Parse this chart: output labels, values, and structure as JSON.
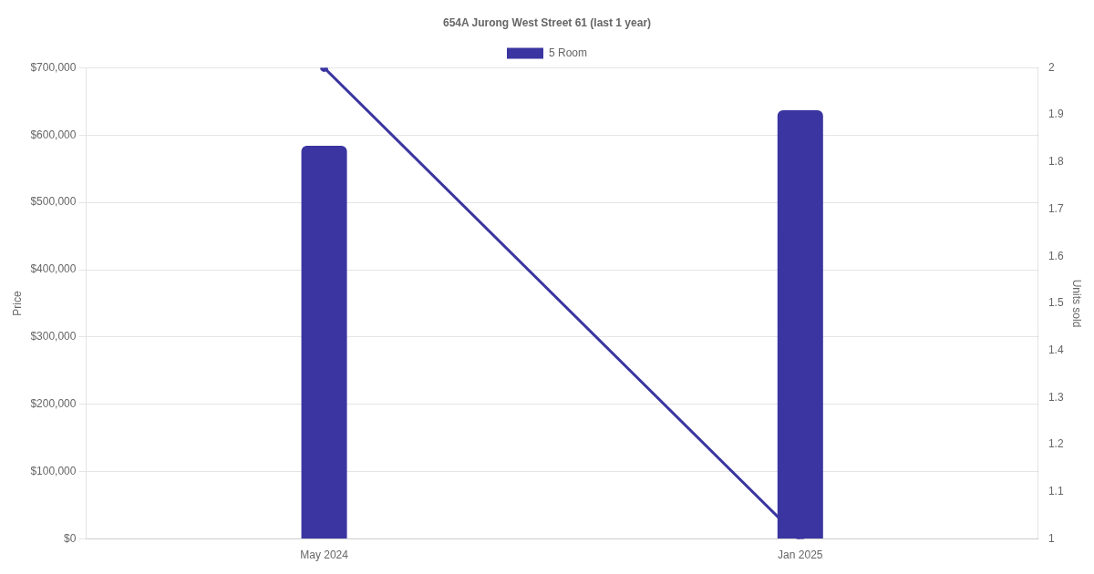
{
  "chart_data": {
    "type": "bar",
    "title": "654A Jurong West Street 61 (last 1 year)",
    "categories": [
      "May 2024",
      "Jan 2025"
    ],
    "ylabel": "Price",
    "y2label": "Units sold",
    "ylim": [
      0,
      700000
    ],
    "yticks": [
      {
        "value": 0,
        "label": "$0"
      },
      {
        "value": 100000,
        "label": "$100,000"
      },
      {
        "value": 200000,
        "label": "$200,000"
      },
      {
        "value": 300000,
        "label": "$300,000"
      },
      {
        "value": 400000,
        "label": "$400,000"
      },
      {
        "value": 500000,
        "label": "$500,000"
      },
      {
        "value": 600000,
        "label": "$600,000"
      },
      {
        "value": 700000,
        "label": "$700,000"
      }
    ],
    "y2lim": [
      1,
      2
    ],
    "y2ticks": [
      1,
      1.1,
      1.2,
      1.3,
      1.4,
      1.5,
      1.6,
      1.7,
      1.8,
      1.9,
      2
    ],
    "grid": "y",
    "legend": "top",
    "marker": "circle",
    "series": [
      {
        "name": "5 Room",
        "color": "#3a35a0",
        "values": [
          584000,
          637000
        ]
      },
      {
        "type": "line",
        "axis": "y2",
        "color": "#3a35a0",
        "values": [
          2,
          1
        ]
      }
    ]
  }
}
